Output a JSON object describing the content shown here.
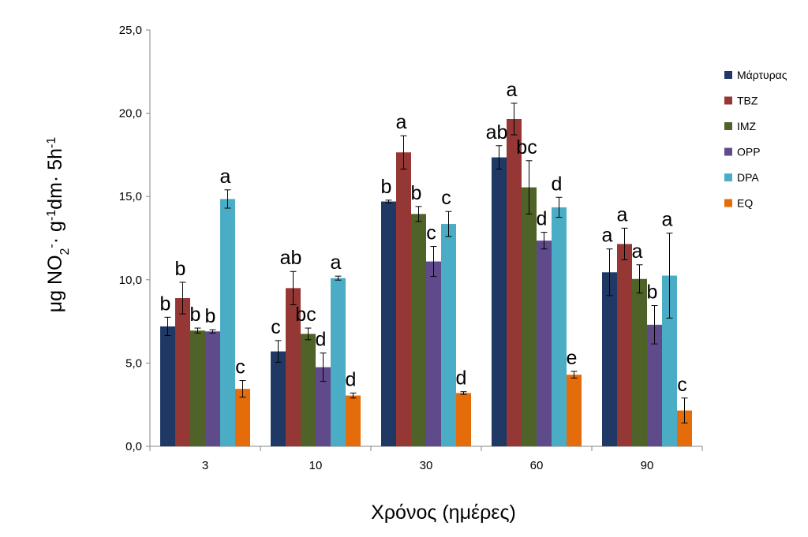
{
  "chart_data": {
    "type": "bar",
    "categories": [
      "3",
      "10",
      "30",
      "60",
      "90"
    ],
    "xlabel": "Χρόνος (ημέρες)",
    "ylabel": {
      "parts": [
        {
          "text": "μg NO",
          "shift": "none"
        },
        {
          "text": "2",
          "shift": "sub"
        },
        {
          "text": "-",
          "shift": "super"
        },
        {
          "text": "· g",
          "shift": "none"
        },
        {
          "text": "-1",
          "shift": "super"
        },
        {
          "text": "dm· 5h",
          "shift": "none"
        },
        {
          "text": "-1",
          "shift": "super"
        }
      ]
    },
    "ylim": [
      0,
      25
    ],
    "yticks": [
      "0,0",
      "5,0",
      "10,0",
      "15,0",
      "20,0",
      "25,0"
    ],
    "grid": false,
    "legend_position": "right",
    "series": [
      {
        "name": "Μάρτυρας",
        "color": "#1f3864",
        "values": [
          7.2,
          5.7,
          14.7,
          17.35,
          10.45
        ],
        "errors": [
          0.55,
          0.65,
          0.08,
          0.7,
          1.4
        ],
        "letters": [
          "b",
          "c",
          "b",
          "ab",
          "a"
        ]
      },
      {
        "name": "TBZ",
        "color": "#953735",
        "values": [
          8.9,
          9.5,
          17.65,
          19.65,
          12.15
        ],
        "errors": [
          0.95,
          1.0,
          1.0,
          0.95,
          0.95
        ],
        "letters": [
          "b",
          "ab",
          "a",
          "a",
          "a"
        ]
      },
      {
        "name": "IMZ",
        "color": "#4f6228",
        "values": [
          6.95,
          6.75,
          13.95,
          15.55,
          10.05
        ],
        "errors": [
          0.15,
          0.35,
          0.45,
          1.6,
          0.85
        ],
        "letters": [
          "b",
          "bc",
          "b",
          "bc",
          "a"
        ]
      },
      {
        "name": "OPP",
        "color": "#5f4b8b",
        "values": [
          6.9,
          4.75,
          11.1,
          12.35,
          7.3
        ],
        "errors": [
          0.1,
          0.85,
          0.9,
          0.5,
          1.15
        ],
        "letters": [
          "b",
          "d",
          "c",
          "d",
          "b"
        ]
      },
      {
        "name": "DPA",
        "color": "#4bacc6",
        "values": [
          14.85,
          10.1,
          13.35,
          14.35,
          10.25
        ],
        "errors": [
          0.55,
          0.12,
          0.75,
          0.6,
          2.55
        ],
        "letters": [
          "a",
          "a",
          "c",
          "d",
          "a"
        ]
      },
      {
        "name": "EQ",
        "color": "#e46c0a",
        "values": [
          3.45,
          3.05,
          3.2,
          4.3,
          2.15
        ],
        "errors": [
          0.5,
          0.15,
          0.08,
          0.2,
          0.75
        ],
        "letters": [
          "c",
          "d",
          "d",
          "e",
          "c"
        ]
      }
    ]
  }
}
